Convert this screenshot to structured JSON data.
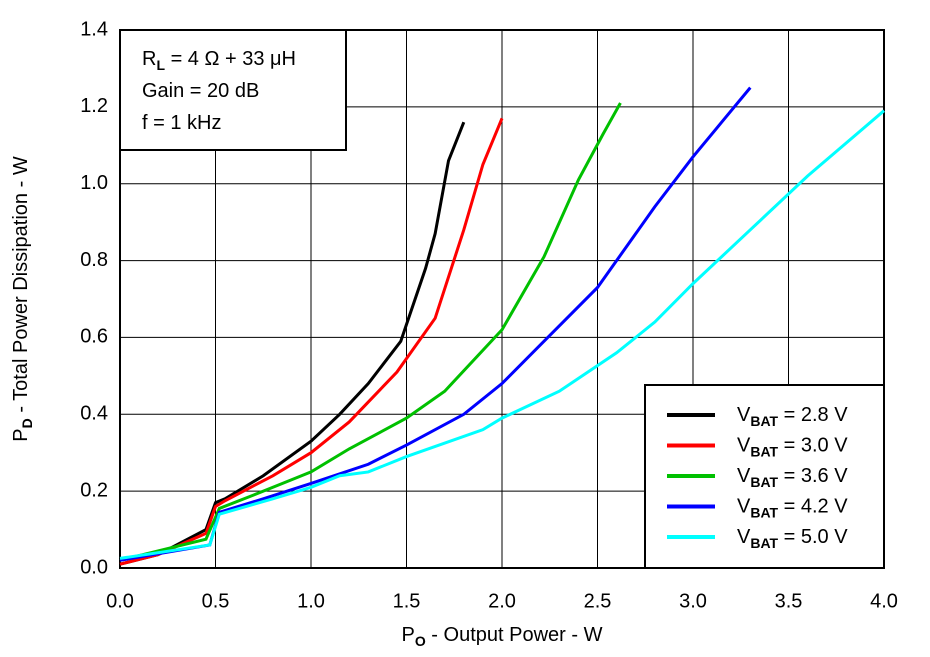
{
  "chart_data": {
    "type": "line",
    "x_label": [
      "P",
      "O",
      " - Output Power - W"
    ],
    "y_label": [
      "P",
      "D",
      " - Total Power Dissipation - W"
    ],
    "annotations": [
      [
        "R",
        "L",
        " = 4 Ω + 33 μH"
      ],
      [
        "Gain = 20 dB"
      ],
      [
        "f = 1 kHz"
      ]
    ],
    "xlim": [
      0,
      4
    ],
    "ylim": [
      0,
      1.4
    ],
    "xticks": [
      {
        "value": 0,
        "label": "0.0"
      },
      0.5,
      {
        "value": 1,
        "label": "1.0"
      },
      1.5,
      {
        "value": 2,
        "label": "2.0"
      },
      2.5,
      {
        "value": 3,
        "label": "3.0"
      },
      3.5,
      {
        "value": 4,
        "label": "4.0"
      }
    ],
    "yticks": [
      {
        "value": 0,
        "label": "0.0"
      },
      0.2,
      0.4,
      0.6,
      0.8,
      {
        "value": 1,
        "label": "1.0"
      },
      1.2,
      1.4
    ],
    "grid": true,
    "legend": "lower right",
    "series": [
      {
        "name": [
          "V",
          "BAT",
          " = 2.8 V"
        ],
        "color": "#000000",
        "x": [
          0,
          0.2,
          0.45,
          0.5,
          0.55,
          0.75,
          1.0,
          1.15,
          1.3,
          1.47,
          1.6,
          1.65,
          1.72,
          1.8
        ],
        "values": [
          0.01,
          0.035,
          0.1,
          0.17,
          0.18,
          0.24,
          0.33,
          0.4,
          0.48,
          0.59,
          0.78,
          0.87,
          1.06,
          1.16
        ]
      },
      {
        "name": [
          "V",
          "BAT",
          " = 3.0 V"
        ],
        "color": "#ff0000",
        "x": [
          0,
          0.2,
          0.45,
          0.5,
          0.55,
          0.8,
          1.0,
          1.2,
          1.45,
          1.65,
          1.8,
          1.9,
          2.0
        ],
        "values": [
          0.01,
          0.035,
          0.09,
          0.16,
          0.175,
          0.24,
          0.3,
          0.38,
          0.51,
          0.65,
          0.88,
          1.05,
          1.17
        ]
      },
      {
        "name": [
          "V",
          "BAT",
          " = 3.6 V"
        ],
        "color": "#00c000",
        "x": [
          0,
          0.45,
          0.52,
          0.7,
          0.9,
          1.0,
          1.2,
          1.5,
          1.7,
          2.0,
          2.22,
          2.4,
          2.53,
          2.62
        ],
        "values": [
          0.02,
          0.075,
          0.155,
          0.19,
          0.23,
          0.25,
          0.31,
          0.39,
          0.46,
          0.62,
          0.81,
          1.01,
          1.13,
          1.21
        ]
      },
      {
        "name": [
          "V",
          "BAT",
          " = 4.2 V"
        ],
        "color": "#0000ff",
        "x": [
          0,
          0.47,
          0.52,
          0.75,
          1.0,
          1.3,
          1.5,
          1.8,
          2.0,
          2.2,
          2.5,
          2.8,
          3.0,
          3.15,
          3.3
        ],
        "values": [
          0.02,
          0.06,
          0.145,
          0.18,
          0.22,
          0.27,
          0.32,
          0.4,
          0.48,
          0.58,
          0.73,
          0.94,
          1.07,
          1.16,
          1.25
        ]
      },
      {
        "name": [
          "V",
          "BAT",
          " = 5.0 V"
        ],
        "color": "#00ffff",
        "x": [
          0,
          0.47,
          0.52,
          0.8,
          1.0,
          1.15,
          1.3,
          1.5,
          1.9,
          2.0,
          2.3,
          2.6,
          2.8,
          3.0,
          3.3,
          3.6,
          4.0
        ],
        "values": [
          0.025,
          0.06,
          0.14,
          0.18,
          0.21,
          0.24,
          0.25,
          0.29,
          0.36,
          0.39,
          0.46,
          0.56,
          0.64,
          0.74,
          0.88,
          1.02,
          1.19
        ]
      }
    ]
  }
}
